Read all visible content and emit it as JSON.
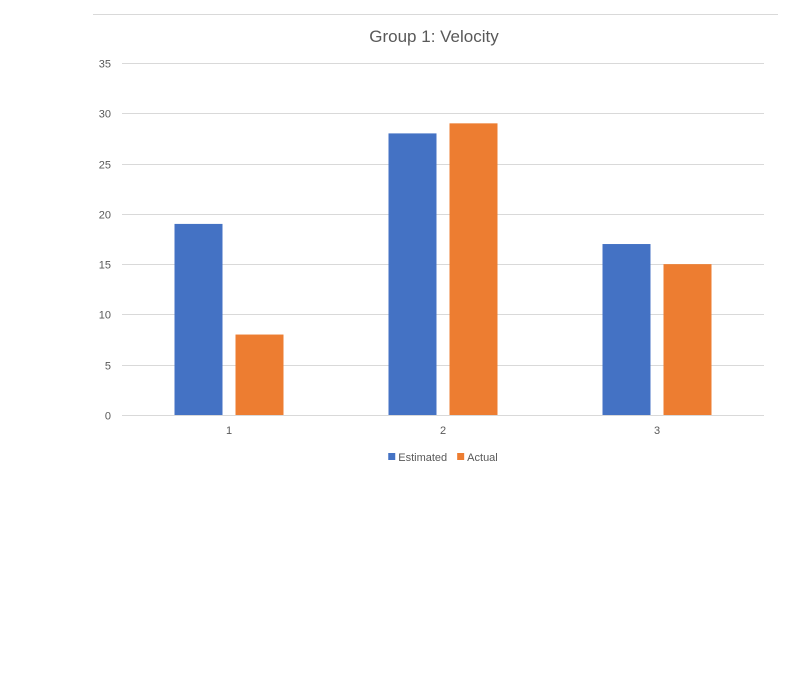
{
  "chart_data": {
    "type": "bar",
    "title": "Group 1: Velocity",
    "xlabel": "",
    "ylabel": "",
    "categories": [
      "1",
      "2",
      "3"
    ],
    "series": [
      {
        "name": "Estimated",
        "values": [
          19,
          28,
          17
        ],
        "color": "#4472C4"
      },
      {
        "name": "Actual",
        "values": [
          8,
          29,
          15
        ],
        "color": "#ED7D31"
      }
    ],
    "ylim": [
      0,
      35
    ],
    "yticks": [
      0,
      5,
      10,
      15,
      20,
      25,
      30,
      35
    ],
    "grid": true,
    "legend_position": "bottom"
  }
}
